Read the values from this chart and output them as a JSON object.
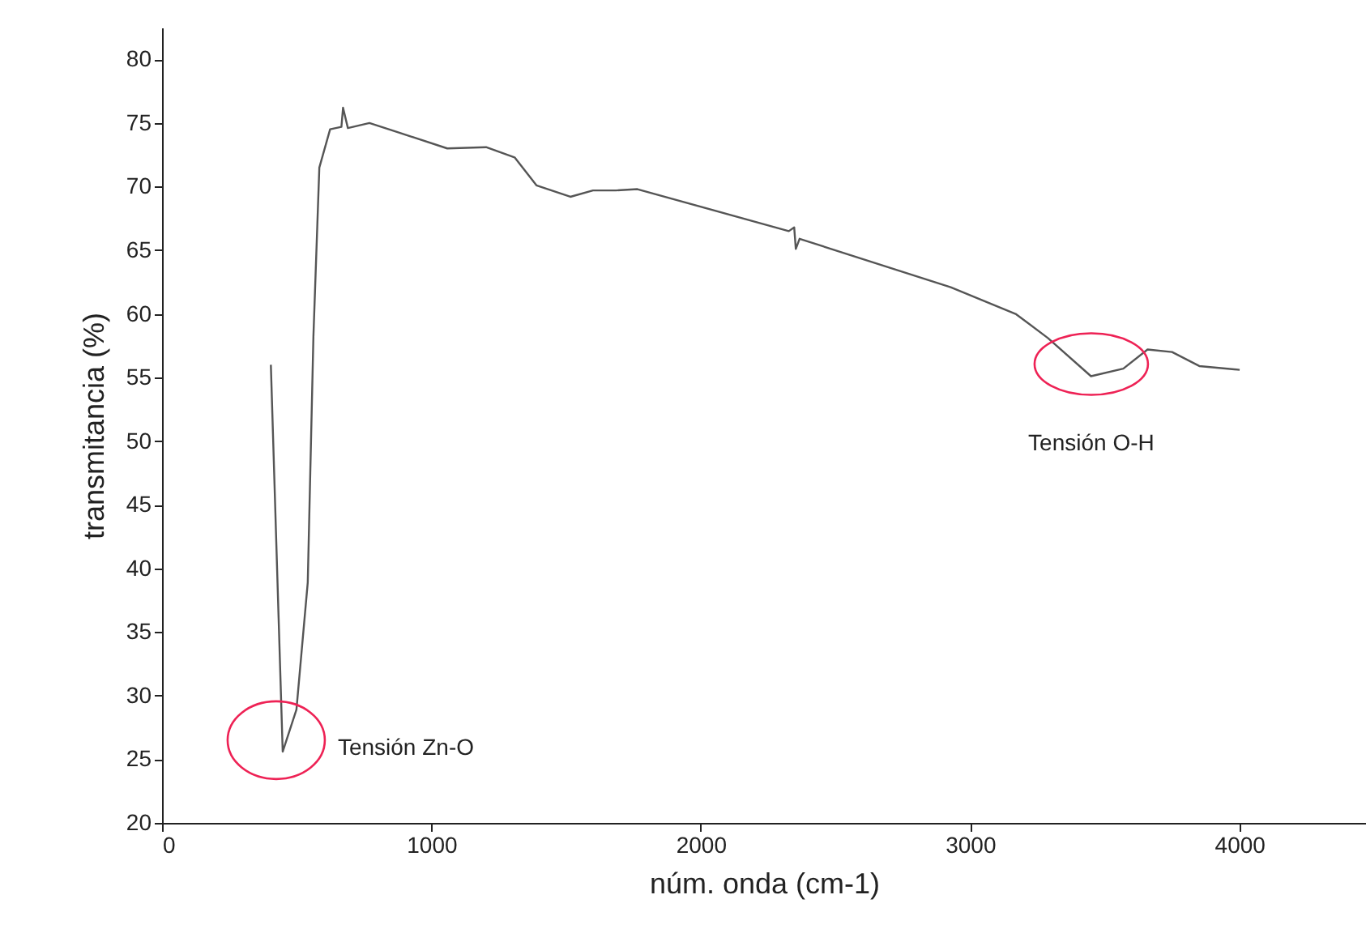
{
  "chart_data": {
    "type": "line",
    "xlabel": "núm. onda (cm-1)",
    "ylabel": "transmitancia (%)",
    "xlim": [
      0,
      4470
    ],
    "ylim": [
      20,
      82.5
    ],
    "xticks": [
      0,
      1000,
      2000,
      3000,
      4000
    ],
    "yticks": [
      20,
      25,
      30,
      35,
      40,
      45,
      50,
      55,
      60,
      65,
      70,
      75,
      80
    ],
    "grid": false,
    "marker": "none",
    "line_style": "solid",
    "series": [
      {
        "color": "#555555",
        "x": [
          404,
          448,
          499,
          541,
          562,
          584,
          624,
          666,
          672,
          690,
          770,
          872,
          1059,
          1203,
          1309,
          1390,
          1516,
          1600,
          1685,
          1765,
          2327,
          2347,
          2353,
          2367,
          2928,
          3169,
          3289,
          3449,
          3569,
          3659,
          3750,
          3851,
          4001
        ],
        "values": [
          56.0,
          25.6,
          28.9,
          38.9,
          58.2,
          71.5,
          74.5,
          74.7,
          76.2,
          74.6,
          75.0,
          74.3,
          73.0,
          73.1,
          72.3,
          70.1,
          69.2,
          69.7,
          69.7,
          69.8,
          66.5,
          66.8,
          65.1,
          65.9,
          62.1,
          60.0,
          58.1,
          55.1,
          55.7,
          57.2,
          57.0,
          55.9,
          55.6
        ]
      }
    ],
    "annotations": [
      {
        "text": "Tensión Zn-O",
        "x": 448,
        "y": 26.5
      },
      {
        "text": "Tensión O-H",
        "x": 3450,
        "y": 55.8
      }
    ]
  }
}
